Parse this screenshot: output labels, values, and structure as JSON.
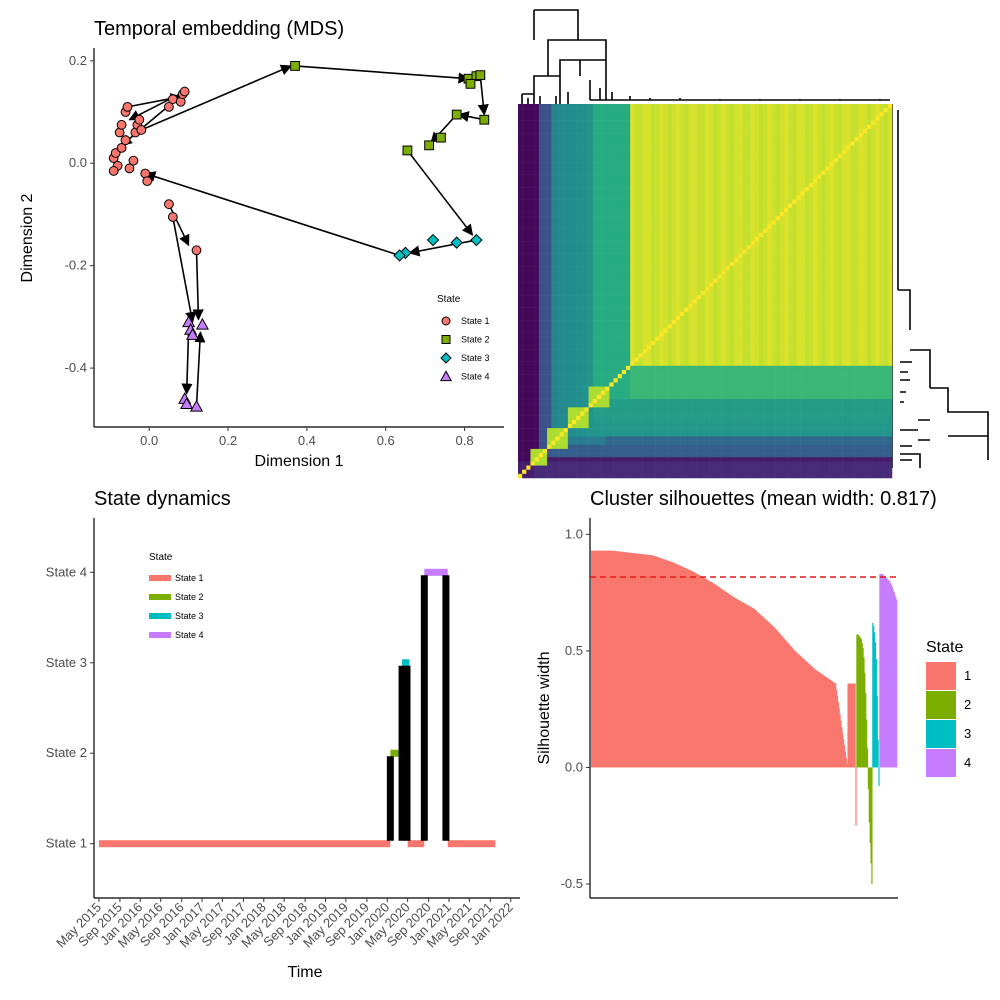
{
  "colors": {
    "state1": "#F8766D",
    "state2": "#7CAE00",
    "state3": "#00BFC4",
    "state4": "#C77CFF",
    "mean_line": "#E41A1C",
    "path": "#000000"
  },
  "chart_data": [
    {
      "id": "mds",
      "type": "scatter",
      "title": "Temporal embedding (MDS)",
      "xlabel": "Dimension 1",
      "ylabel": "Dimension 2",
      "xlim": [
        -0.14,
        0.9
      ],
      "ylim": [
        -0.515,
        0.225
      ],
      "xticks": [
        0.0,
        0.2,
        0.4,
        0.6,
        0.8
      ],
      "xtick_labels": [
        "0.0",
        "0.2",
        "0.4",
        "0.6",
        "0.8"
      ],
      "yticks": [
        0.2,
        0.0,
        -0.2,
        -0.4
      ],
      "ytick_labels": [
        "0.2",
        "0.0",
        "-0.2",
        "-0.4"
      ],
      "legend": {
        "title": "State",
        "items": [
          {
            "label": "State 1",
            "shape": "circle",
            "state": 1
          },
          {
            "label": "State 2",
            "shape": "square",
            "state": 2
          },
          {
            "label": "State 3",
            "shape": "diamond",
            "state": 3
          },
          {
            "label": "State 4",
            "shape": "triangle",
            "state": 4
          }
        ]
      },
      "points": [
        {
          "x": -0.09,
          "y": 0.01,
          "state": 1
        },
        {
          "x": -0.085,
          "y": 0.02,
          "state": 1
        },
        {
          "x": -0.08,
          "y": -0.005,
          "state": 1
        },
        {
          "x": -0.07,
          "y": 0.03,
          "state": 1
        },
        {
          "x": -0.06,
          "y": 0.045,
          "state": 1
        },
        {
          "x": -0.075,
          "y": 0.06,
          "state": 1
        },
        {
          "x": -0.07,
          "y": 0.075,
          "state": 1
        },
        {
          "x": -0.06,
          "y": 0.1,
          "state": 1
        },
        {
          "x": -0.055,
          "y": 0.11,
          "state": 1
        },
        {
          "x": -0.05,
          "y": -0.01,
          "state": 1
        },
        {
          "x": -0.04,
          "y": 0.005,
          "state": 1
        },
        {
          "x": -0.035,
          "y": 0.06,
          "state": 1
        },
        {
          "x": -0.03,
          "y": 0.075,
          "state": 1
        },
        {
          "x": -0.025,
          "y": 0.085,
          "state": 1
        },
        {
          "x": -0.02,
          "y": 0.065,
          "state": 1
        },
        {
          "x": -0.01,
          "y": -0.02,
          "state": 1
        },
        {
          "x": -0.005,
          "y": -0.035,
          "state": 1
        },
        {
          "x": 0.05,
          "y": 0.11,
          "state": 1
        },
        {
          "x": 0.06,
          "y": 0.125,
          "state": 1
        },
        {
          "x": 0.08,
          "y": 0.12,
          "state": 1
        },
        {
          "x": 0.085,
          "y": 0.135,
          "state": 1
        },
        {
          "x": 0.09,
          "y": 0.14,
          "state": 1
        },
        {
          "x": -0.09,
          "y": -0.015,
          "state": 1
        },
        {
          "x": 0.05,
          "y": -0.08,
          "state": 1
        },
        {
          "x": 0.06,
          "y": -0.105,
          "state": 1
        },
        {
          "x": 0.12,
          "y": -0.17,
          "state": 1
        },
        {
          "x": 0.37,
          "y": 0.19,
          "state": 2
        },
        {
          "x": 0.81,
          "y": 0.165,
          "state": 2
        },
        {
          "x": 0.83,
          "y": 0.17,
          "state": 2
        },
        {
          "x": 0.84,
          "y": 0.172,
          "state": 2
        },
        {
          "x": 0.815,
          "y": 0.155,
          "state": 2
        },
        {
          "x": 0.85,
          "y": 0.085,
          "state": 2
        },
        {
          "x": 0.78,
          "y": 0.095,
          "state": 2
        },
        {
          "x": 0.74,
          "y": 0.05,
          "state": 2
        },
        {
          "x": 0.71,
          "y": 0.035,
          "state": 2
        },
        {
          "x": 0.655,
          "y": 0.025,
          "state": 2
        },
        {
          "x": 0.83,
          "y": -0.15,
          "state": 3
        },
        {
          "x": 0.78,
          "y": -0.155,
          "state": 3
        },
        {
          "x": 0.72,
          "y": -0.15,
          "state": 3
        },
        {
          "x": 0.65,
          "y": -0.175,
          "state": 3
        },
        {
          "x": 0.635,
          "y": -0.18,
          "state": 3
        },
        {
          "x": 0.1,
          "y": -0.31,
          "state": 4
        },
        {
          "x": 0.105,
          "y": -0.325,
          "state": 4
        },
        {
          "x": 0.11,
          "y": -0.335,
          "state": 4
        },
        {
          "x": 0.135,
          "y": -0.315,
          "state": 4
        },
        {
          "x": 0.09,
          "y": -0.46,
          "state": 4
        },
        {
          "x": 0.095,
          "y": -0.47,
          "state": 4
        },
        {
          "x": 0.12,
          "y": -0.475,
          "state": 4
        }
      ],
      "arrows": [
        {
          "from": [
            0.09,
            0.14
          ],
          "to": [
            -0.05,
            0.085
          ]
        },
        {
          "from": [
            -0.055,
            0.11
          ],
          "to": [
            0.08,
            0.13
          ]
        },
        {
          "from": [
            0.085,
            0.135
          ],
          "to": [
            -0.07,
            0.035
          ]
        },
        {
          "from": [
            -0.02,
            0.065
          ],
          "to": [
            0.36,
            0.19
          ]
        },
        {
          "from": [
            0.37,
            0.19
          ],
          "to": [
            0.81,
            0.165
          ]
        },
        {
          "from": [
            0.81,
            0.165
          ],
          "to": [
            0.815,
            0.15
          ]
        },
        {
          "from": [
            0.84,
            0.17
          ],
          "to": [
            0.85,
            0.095
          ]
        },
        {
          "from": [
            0.85,
            0.085
          ],
          "to": [
            0.785,
            0.095
          ]
        },
        {
          "from": [
            0.78,
            0.095
          ],
          "to": [
            0.715,
            0.04
          ]
        },
        {
          "from": [
            0.655,
            0.025
          ],
          "to": [
            0.82,
            -0.14
          ]
        },
        {
          "from": [
            0.83,
            -0.15
          ],
          "to": [
            0.66,
            -0.175
          ]
        },
        {
          "from": [
            0.635,
            -0.18
          ],
          "to": [
            -0.01,
            -0.02
          ]
        },
        {
          "from": [
            0.05,
            -0.08
          ],
          "to": [
            0.1,
            -0.16
          ]
        },
        {
          "from": [
            0.06,
            -0.105
          ],
          "to": [
            0.11,
            -0.31
          ]
        },
        {
          "from": [
            0.12,
            -0.17
          ],
          "to": [
            0.125,
            -0.305
          ]
        },
        {
          "from": [
            0.1,
            -0.325
          ],
          "to": [
            0.095,
            -0.45
          ]
        },
        {
          "from": [
            0.12,
            -0.475
          ],
          "to": [
            0.13,
            -0.33
          ]
        }
      ]
    },
    {
      "id": "heatmap",
      "type": "heatmap",
      "title": "",
      "colormap": "viridis",
      "blocks": [
        0.06,
        0.13,
        0.2,
        0.27,
        0.55
      ],
      "dendrogram": true
    },
    {
      "id": "dynamics",
      "type": "line",
      "title": "State dynamics",
      "xlabel": "Time",
      "ylabel": "",
      "xlim": [
        2015.25,
        2022.15
      ],
      "ylim": [
        0.4,
        4.6
      ],
      "yticks": [
        1,
        2,
        3,
        4
      ],
      "ytick_labels": [
        "State 1",
        "State 2",
        "State 3",
        "State 4"
      ],
      "xticks": [
        2015.33,
        2015.67,
        2016.0,
        2016.33,
        2016.67,
        2017.0,
        2017.33,
        2017.67,
        2018.0,
        2018.33,
        2018.67,
        2019.0,
        2019.33,
        2019.67,
        2020.0,
        2020.33,
        2020.67,
        2021.0,
        2021.33,
        2021.67,
        2022.0
      ],
      "xtick_labels": [
        "May 2015",
        "Sep 2015",
        "Jan 2016",
        "May 2016",
        "Sep 2016",
        "Jan 2017",
        "May 2017",
        "Sep 2017",
        "Jan 2018",
        "May 2018",
        "Sep 2018",
        "Jan 2019",
        "May 2019",
        "Sep 2019",
        "Jan 2020",
        "May 2020",
        "Sep 2020",
        "Jan 2021",
        "May 2021",
        "Sep 2021",
        "Jan 2022"
      ],
      "legend": {
        "title": "State",
        "items": [
          {
            "label": "State 1",
            "state": 1
          },
          {
            "label": "State 2",
            "state": 2
          },
          {
            "label": "State 3",
            "state": 3
          },
          {
            "label": "State 4",
            "state": 4
          }
        ]
      },
      "segments": [
        {
          "x0": 2015.33,
          "x1": 2020.05,
          "state": 1
        },
        {
          "x0": 2020.05,
          "x1": 2020.28,
          "state": 2
        },
        {
          "x0": 2020.24,
          "x1": 2020.36,
          "state": 3
        },
        {
          "x0": 2020.33,
          "x1": 2020.6,
          "state": 1
        },
        {
          "x0": 2020.6,
          "x1": 2020.98,
          "state": 4
        },
        {
          "x0": 2020.98,
          "x1": 2021.75,
          "state": 1
        }
      ],
      "vertical_path": [
        {
          "x": 2020.05,
          "y0": 1,
          "y1": 2
        },
        {
          "x": 2020.24,
          "y0": 1,
          "y1": 3
        },
        {
          "x": 2020.32,
          "y0": 1,
          "y1": 3
        },
        {
          "x": 2020.6,
          "y0": 1,
          "y1": 4
        },
        {
          "x": 2020.95,
          "y0": 1,
          "y1": 4
        }
      ]
    },
    {
      "id": "silhouette",
      "type": "bar",
      "title": "Cluster silhouettes (mean width: 0.817)",
      "xlabel": "",
      "ylabel": "Silhouette width",
      "ylim": [
        -0.56,
        1.07
      ],
      "yticks": [
        1.0,
        0.5,
        0.0,
        -0.5
      ],
      "ytick_labels": [
        "1.0",
        "0.5",
        "0.0",
        "-0.5"
      ],
      "mean_width": 0.817,
      "legend": {
        "title": "State",
        "items": [
          {
            "label": "1",
            "state": 1
          },
          {
            "label": "2",
            "state": 2
          },
          {
            "label": "3",
            "state": 3
          },
          {
            "label": "4",
            "state": 4
          }
        ]
      },
      "groups": [
        {
          "state": 1,
          "n": 300,
          "values": [
            0.93,
            0.93,
            0.92,
            0.91,
            0.88,
            0.84,
            0.79,
            0.73,
            0.68,
            0.6,
            0.5,
            0.42,
            0.36,
            -0.25
          ]
        },
        {
          "state": 2,
          "n": 18,
          "values": [
            0.57,
            0.57,
            0.56,
            0.55,
            0.52,
            0.45,
            0.3,
            0.1,
            -0.2,
            -0.35,
            -0.5
          ]
        },
        {
          "state": 3,
          "n": 8,
          "values": [
            0.62,
            0.6,
            0.55,
            0.45,
            0.2,
            -0.08
          ]
        },
        {
          "state": 4,
          "n": 20,
          "values": [
            0.83,
            0.83,
            0.82,
            0.81,
            0.8,
            0.78,
            0.75,
            0.72
          ]
        }
      ]
    }
  ]
}
